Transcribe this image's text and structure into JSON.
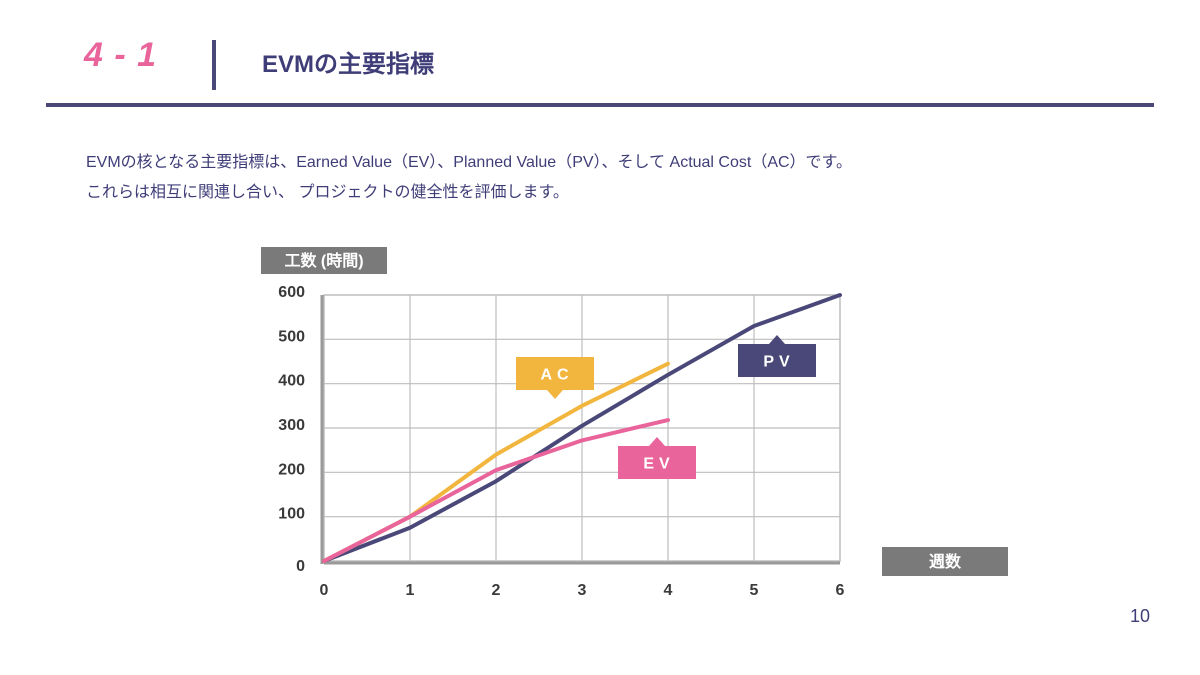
{
  "header": {
    "section_number": "4 - 1",
    "title": "EVMの主要指標"
  },
  "description": {
    "line1": "EVMの核となる主要指標は、Earned Value（EV）、Planned Value（PV）、そして Actual Cost（AC）です。",
    "line2": "これらは相互に関連し合い、 プロジェクトの健全性を評価します。"
  },
  "page_number": "10",
  "colors": {
    "accent_pink": "#e8649a",
    "navy": "#4a4878",
    "ac_yellow": "#f2b63e",
    "grid": "#bdbdbd",
    "label_gray": "#7a7a7a"
  },
  "chart_data": {
    "type": "line",
    "ylabel": "工数 (時間)",
    "xlabel": "週数",
    "x": [
      0,
      1,
      2,
      3,
      4,
      5,
      6
    ],
    "xlim": [
      0,
      6
    ],
    "ylim": [
      0,
      600
    ],
    "yticks": [
      0,
      100,
      200,
      300,
      400,
      500,
      600
    ],
    "grid": true,
    "series": [
      {
        "name": "PV",
        "color": "#4a4878",
        "x": [
          0,
          1,
          2,
          3,
          4,
          5,
          6
        ],
        "values": [
          0,
          75,
          180,
          305,
          420,
          530,
          600
        ]
      },
      {
        "name": "AC",
        "color": "#f2b63e",
        "x": [
          0,
          1,
          2,
          3,
          4
        ],
        "values": [
          0,
          100,
          240,
          350,
          445
        ]
      },
      {
        "name": "EV",
        "color": "#e8649a",
        "x": [
          0,
          1,
          2,
          3,
          4
        ],
        "values": [
          0,
          100,
          205,
          272,
          318
        ]
      }
    ]
  }
}
